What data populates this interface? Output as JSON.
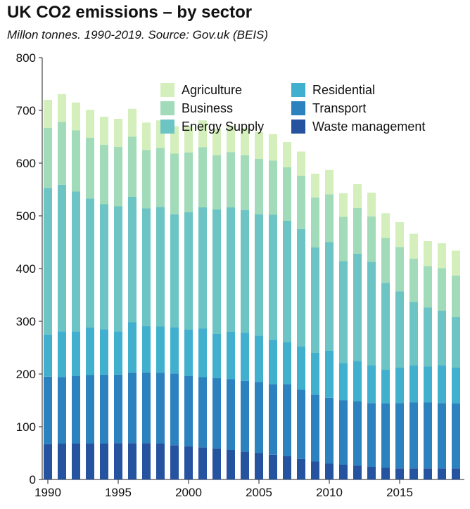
{
  "chart_data": {
    "type": "bar",
    "stacked": true,
    "title": "UK CO2 emissions – by sector",
    "subtitle": "Millon tonnes. 1990-2019. Source: Gov.uk (BEIS)",
    "xlabel": "",
    "ylabel": "",
    "ylim": [
      0,
      800
    ],
    "yticks": [
      0,
      100,
      200,
      300,
      400,
      500,
      600,
      700,
      800
    ],
    "xticks": [
      1990,
      1995,
      2000,
      2005,
      2010,
      2015
    ],
    "grid": false,
    "legend_position": "top-right",
    "categories": [
      1990,
      1991,
      1992,
      1993,
      1994,
      1995,
      1996,
      1997,
      1998,
      1999,
      2000,
      2001,
      2002,
      2003,
      2004,
      2005,
      2006,
      2007,
      2008,
      2009,
      2010,
      2011,
      2012,
      2013,
      2014,
      2015,
      2016,
      2017,
      2018,
      2019
    ],
    "series": [
      {
        "name": "Waste management",
        "color": "#2553a0",
        "values": [
          67,
          68,
          68,
          68,
          68,
          69,
          69,
          69,
          68,
          65,
          63,
          61,
          59,
          56,
          53,
          50,
          47,
          44,
          39,
          34,
          30,
          28,
          26,
          24,
          22,
          21,
          21,
          21,
          21,
          21
        ]
      },
      {
        "name": "Transport",
        "color": "#2b82bf",
        "values": [
          128,
          126,
          128,
          130,
          131,
          130,
          134,
          134,
          134,
          136,
          133,
          133,
          133,
          134,
          134,
          135,
          134,
          137,
          131,
          127,
          125,
          122,
          122,
          121,
          122,
          124,
          125,
          125,
          124,
          123
        ]
      },
      {
        "name": "Residential",
        "color": "#41b0ce",
        "values": [
          80,
          87,
          85,
          90,
          86,
          82,
          95,
          88,
          88,
          88,
          88,
          92,
          84,
          90,
          91,
          88,
          84,
          80,
          82,
          79,
          89,
          71,
          77,
          72,
          64,
          67,
          70,
          68,
          71,
          68
        ]
      },
      {
        "name": "Energy Supply",
        "color": "#6cc4c4",
        "values": [
          278,
          278,
          265,
          245,
          237,
          237,
          238,
          223,
          227,
          214,
          223,
          230,
          236,
          236,
          233,
          230,
          237,
          230,
          223,
          200,
          206,
          193,
          203,
          196,
          165,
          145,
          121,
          112,
          104,
          96
        ]
      },
      {
        "name": "Business",
        "color": "#a1dbb9",
        "values": [
          114,
          119,
          116,
          115,
          113,
          113,
          114,
          111,
          112,
          115,
          113,
          114,
          103,
          105,
          104,
          105,
          103,
          101,
          101,
          95,
          91,
          84,
          87,
          86,
          85,
          84,
          82,
          79,
          81,
          79
        ]
      },
      {
        "name": "Agriculture",
        "color": "#d4efbc",
        "values": [
          53,
          53,
          53,
          53,
          53,
          53,
          53,
          52,
          52,
          52,
          50,
          51,
          50,
          50,
          51,
          51,
          50,
          48,
          46,
          45,
          46,
          45,
          45,
          45,
          47,
          47,
          47,
          47,
          47,
          47
        ]
      }
    ],
    "legend": [
      "Agriculture",
      "Business",
      "Energy Supply",
      "Residential",
      "Transport",
      "Waste management"
    ]
  }
}
